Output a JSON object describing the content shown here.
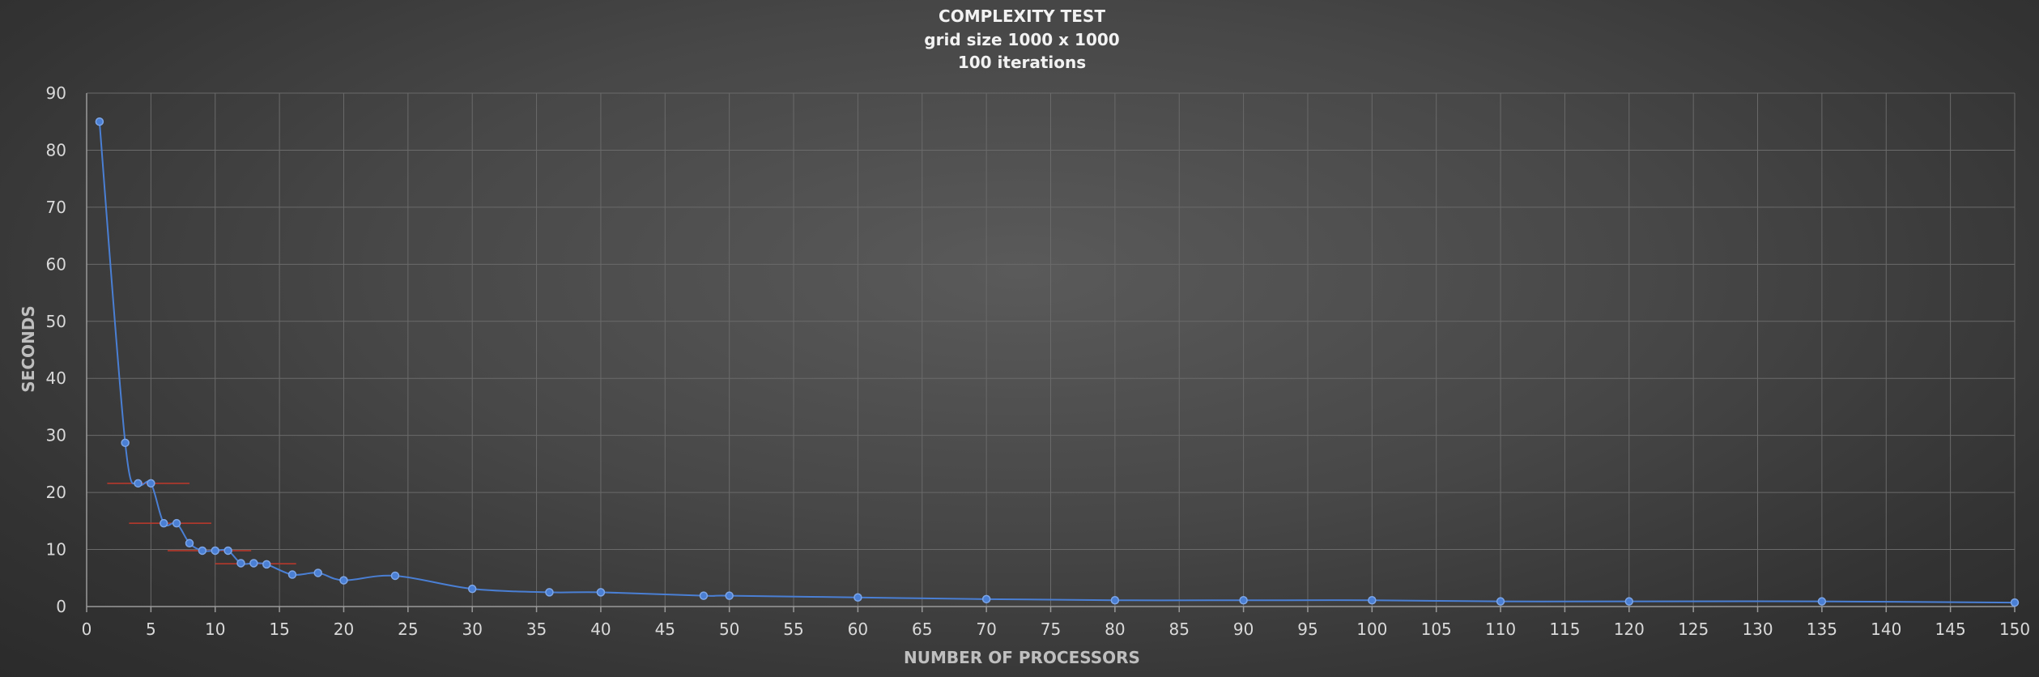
{
  "chart_data": {
    "type": "scatter",
    "title": [
      "COMPLEXITY TEST",
      "grid size 1000 x 1000",
      "100 iterations"
    ],
    "xlabel": "NUMBER OF PROCESSORS",
    "ylabel": "SECONDS",
    "xlim": [
      0,
      150
    ],
    "ylim": [
      0,
      90
    ],
    "x_ticks": [
      0,
      5,
      10,
      15,
      20,
      25,
      30,
      35,
      40,
      45,
      50,
      55,
      60,
      65,
      70,
      75,
      80,
      85,
      90,
      95,
      100,
      105,
      110,
      115,
      120,
      125,
      130,
      135,
      140,
      145,
      150
    ],
    "y_ticks": [
      0,
      10,
      20,
      30,
      40,
      50,
      60,
      70,
      80,
      90
    ],
    "grid": true,
    "smooth_line": true,
    "series": [
      {
        "color": "#4a7fd4",
        "x": [
          1,
          3,
          4,
          5,
          6,
          7,
          8,
          9,
          10,
          11,
          12,
          13,
          14,
          16,
          18,
          20,
          24,
          30,
          36,
          40,
          48,
          50,
          60,
          70,
          80,
          90,
          100,
          110,
          120,
          135,
          150
        ],
        "y": [
          85,
          28.7,
          21.6,
          21.6,
          14.6,
          14.6,
          11.1,
          9.8,
          9.8,
          9.8,
          7.6,
          7.6,
          7.4,
          5.6,
          5.9,
          4.6,
          5.4,
          3.1,
          2.5,
          2.5,
          1.9,
          1.9,
          1.6,
          1.3,
          1.1,
          1.1,
          1.1,
          0.9,
          0.9,
          0.9,
          0.7
        ]
      }
    ],
    "error_bars": [
      {
        "y": 21.6,
        "x_from": 1.6,
        "x_to": 8,
        "color": "#c0392b"
      },
      {
        "y": 14.6,
        "x_from": 3.3,
        "x_to": 9.7,
        "color": "#c0392b"
      },
      {
        "y": 9.8,
        "x_from": 6.3,
        "x_to": 12.8,
        "color": "#c0392b"
      },
      {
        "y": 7.5,
        "x_from": 10,
        "x_to": 16.3,
        "color": "#c0392b"
      }
    ]
  }
}
